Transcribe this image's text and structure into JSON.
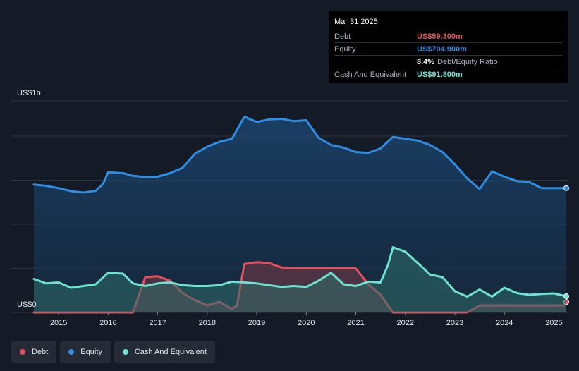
{
  "colors": {
    "background": "#151b26",
    "debt": "#e4505f",
    "equity": "#2f8de4",
    "cash": "#6fe3d2",
    "grid": "#2e3540"
  },
  "tooltip": {
    "date": "Mar 31 2025",
    "rows": [
      {
        "label": "Debt",
        "value": "US$59.300m",
        "color": "#e4505f"
      },
      {
        "label": "Equity",
        "value": "US$704.900m",
        "color": "#2f8de4"
      },
      {
        "label": "",
        "value": "8.4%",
        "sub": "Debt/Equity Ratio",
        "color": "#ffffff"
      },
      {
        "label": "Cash And Equivalent",
        "value": "US$91.800m",
        "color": "#6fe3d2"
      }
    ]
  },
  "legend": [
    {
      "label": "Debt",
      "color": "#e4505f"
    },
    {
      "label": "Equity",
      "color": "#2f8de4"
    },
    {
      "label": "Cash And Equivalent",
      "color": "#6fe3d2"
    }
  ],
  "chart_data": {
    "type": "area",
    "title": "",
    "xlabel": "",
    "ylabel": "",
    "unit": "US$m",
    "y_axis_labels": {
      "top": "US$1b",
      "bottom": "US$0"
    },
    "ylim": [
      0,
      1200
    ],
    "xlim": [
      2014.5,
      2025.25
    ],
    "x_ticks": [
      "2015",
      "2016",
      "2017",
      "2018",
      "2019",
      "2020",
      "2021",
      "2022",
      "2023",
      "2024",
      "2025"
    ],
    "series": [
      {
        "name": "Equity",
        "points": [
          [
            2014.5,
            725
          ],
          [
            2014.75,
            718
          ],
          [
            2015,
            705
          ],
          [
            2015.25,
            688
          ],
          [
            2015.5,
            680
          ],
          [
            2015.75,
            690
          ],
          [
            2015.9,
            730
          ],
          [
            2016,
            795
          ],
          [
            2016.3,
            790
          ],
          [
            2016.5,
            775
          ],
          [
            2016.75,
            768
          ],
          [
            2017,
            770
          ],
          [
            2017.25,
            790
          ],
          [
            2017.5,
            820
          ],
          [
            2017.75,
            900
          ],
          [
            2018,
            940
          ],
          [
            2018.25,
            968
          ],
          [
            2018.5,
            985
          ],
          [
            2018.75,
            1110
          ],
          [
            2019,
            1080
          ],
          [
            2019.25,
            1095
          ],
          [
            2019.5,
            1098
          ],
          [
            2019.75,
            1085
          ],
          [
            2020,
            1090
          ],
          [
            2020.1,
            1050
          ],
          [
            2020.25,
            990
          ],
          [
            2020.5,
            950
          ],
          [
            2020.75,
            935
          ],
          [
            2021,
            910
          ],
          [
            2021.25,
            905
          ],
          [
            2021.5,
            930
          ],
          [
            2021.75,
            995
          ],
          [
            2022,
            985
          ],
          [
            2022.25,
            975
          ],
          [
            2022.5,
            950
          ],
          [
            2022.75,
            910
          ],
          [
            2023,
            840
          ],
          [
            2023.25,
            760
          ],
          [
            2023.5,
            700
          ],
          [
            2023.75,
            800
          ],
          [
            2024,
            770
          ],
          [
            2024.25,
            745
          ],
          [
            2024.5,
            740
          ],
          [
            2024.75,
            705
          ],
          [
            2025.25,
            705
          ]
        ]
      },
      {
        "name": "Debt",
        "points": [
          [
            2014.5,
            0
          ],
          [
            2016.5,
            0
          ],
          [
            2016.75,
            200
          ],
          [
            2017,
            205
          ],
          [
            2017.25,
            180
          ],
          [
            2017.5,
            110
          ],
          [
            2017.75,
            70
          ],
          [
            2018,
            40
          ],
          [
            2018.25,
            60
          ],
          [
            2018.5,
            20
          ],
          [
            2018.6,
            40
          ],
          [
            2018.75,
            275
          ],
          [
            2019,
            285
          ],
          [
            2019.25,
            280
          ],
          [
            2019.5,
            255
          ],
          [
            2019.75,
            250
          ],
          [
            2021,
            250
          ],
          [
            2021.25,
            160
          ],
          [
            2021.5,
            100
          ],
          [
            2021.75,
            0
          ],
          [
            2023.25,
            0
          ],
          [
            2023.5,
            40
          ],
          [
            2025.2,
            40
          ],
          [
            2025.25,
            59.3
          ]
        ]
      },
      {
        "name": "Cash And Equivalent",
        "points": [
          [
            2014.5,
            190
          ],
          [
            2014.75,
            165
          ],
          [
            2015,
            170
          ],
          [
            2015.25,
            140
          ],
          [
            2015.5,
            150
          ],
          [
            2015.75,
            160
          ],
          [
            2016,
            225
          ],
          [
            2016.3,
            220
          ],
          [
            2016.5,
            165
          ],
          [
            2016.75,
            150
          ],
          [
            2017,
            165
          ],
          [
            2017.25,
            170
          ],
          [
            2017.5,
            155
          ],
          [
            2017.75,
            150
          ],
          [
            2018,
            150
          ],
          [
            2018.25,
            155
          ],
          [
            2018.5,
            175
          ],
          [
            2018.75,
            170
          ],
          [
            2019,
            165
          ],
          [
            2019.25,
            155
          ],
          [
            2019.5,
            145
          ],
          [
            2019.75,
            150
          ],
          [
            2020,
            145
          ],
          [
            2020.25,
            180
          ],
          [
            2020.5,
            225
          ],
          [
            2020.75,
            160
          ],
          [
            2021,
            150
          ],
          [
            2021.25,
            175
          ],
          [
            2021.5,
            170
          ],
          [
            2021.65,
            270
          ],
          [
            2021.75,
            370
          ],
          [
            2022,
            345
          ],
          [
            2022.25,
            280
          ],
          [
            2022.5,
            215
          ],
          [
            2022.75,
            200
          ],
          [
            2023,
            120
          ],
          [
            2023.25,
            90
          ],
          [
            2023.5,
            130
          ],
          [
            2023.75,
            90
          ],
          [
            2024,
            140
          ],
          [
            2024.25,
            110
          ],
          [
            2024.5,
            100
          ],
          [
            2024.75,
            105
          ],
          [
            2025,
            108
          ],
          [
            2025.25,
            91.8
          ]
        ]
      }
    ]
  }
}
